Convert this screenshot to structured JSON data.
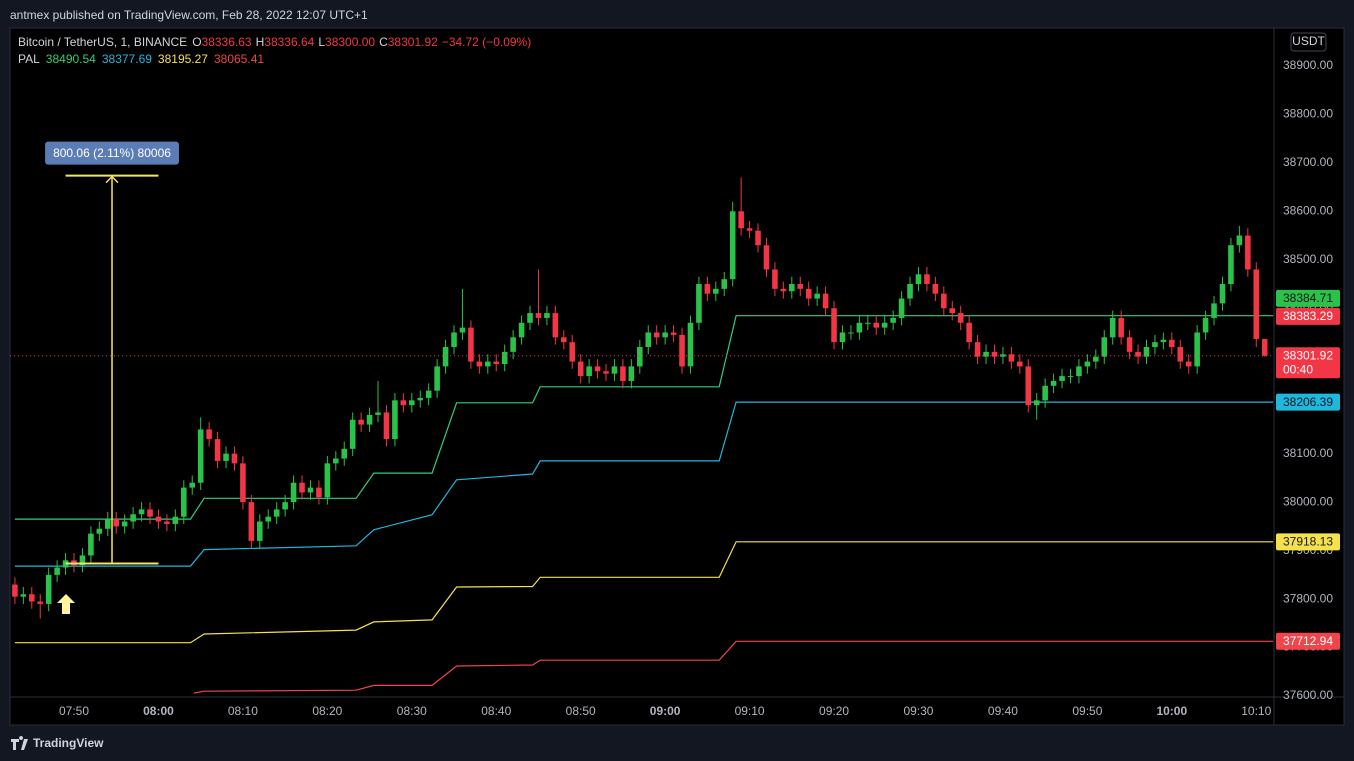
{
  "page": {
    "header": "antmex published on TradingView.com, Feb 28, 2022 12:07 UTC+1",
    "currency_button": "USDT",
    "footer_brand": "TradingView"
  },
  "chart_data": {
    "type": "candlestick",
    "symbol": "Bitcoin / TetherUS, 1, BINANCE",
    "ohlc_legend": [
      {
        "label": "O",
        "value": "38336.63"
      },
      {
        "label": "H",
        "value": "38336.64"
      },
      {
        "label": "L",
        "value": "38300.00"
      },
      {
        "label": "C",
        "value": "38301.92"
      }
    ],
    "change": "−34.72 (−0.09%)",
    "up_color": "#2bc24a",
    "down_color": "#f23645",
    "xlim": [
      -0.58,
      149.1
    ],
    "xticks": [
      {
        "value": 7,
        "label": "07:50"
      },
      {
        "value": 17,
        "label": "08:00"
      },
      {
        "value": 27,
        "label": "08:10"
      },
      {
        "value": 37,
        "label": "08:20"
      },
      {
        "value": 47,
        "label": "08:30"
      },
      {
        "value": 57,
        "label": "08:40"
      },
      {
        "value": 67,
        "label": "08:50"
      },
      {
        "value": 77,
        "label": "09:00"
      },
      {
        "value": 87,
        "label": "09:10"
      },
      {
        "value": 97,
        "label": "09:20"
      },
      {
        "value": 107,
        "label": "09:30"
      },
      {
        "value": 117,
        "label": "09:40"
      },
      {
        "value": 127,
        "label": "09:50"
      },
      {
        "value": 137,
        "label": "10:00"
      },
      {
        "value": 147,
        "label": "10:10"
      }
    ],
    "ylim": [
      37598,
      38974
    ],
    "yticks": [
      {
        "value": 37600,
        "label": "37600.00"
      },
      {
        "value": 37700,
        "label": "37700.00"
      },
      {
        "value": 37800,
        "label": "37800.00"
      },
      {
        "value": 37900,
        "label": "37900.00"
      },
      {
        "value": 38000,
        "label": "38000.00"
      },
      {
        "value": 38100,
        "label": "38100.00"
      },
      {
        "value": 38200,
        "label": "38200.00"
      },
      {
        "value": 38300,
        "label": "38300.00"
      },
      {
        "value": 38400,
        "label": "38400.00"
      },
      {
        "value": 38500,
        "label": "38500.00"
      },
      {
        "value": 38600,
        "label": "38600.00"
      },
      {
        "value": 38700,
        "label": "38700.00"
      },
      {
        "value": 38800,
        "label": "38800.00"
      },
      {
        "value": 38900,
        "label": "38900.00"
      }
    ],
    "grid": false,
    "open": [
      37830,
      37805,
      37810,
      37795,
      37790,
      37850,
      37865,
      37880,
      37870,
      37890,
      37935,
      37945,
      37965,
      37950,
      37960,
      37975,
      37985,
      37970,
      37960,
      37955,
      37970,
      38030,
      38040,
      38150,
      38130,
      38085,
      38100,
      38080,
      38000,
      37920,
      37960,
      37970,
      37985,
      38000,
      38040,
      38020,
      38030,
      38010,
      38080,
      38090,
      38110,
      38170,
      38160,
      38180,
      38185,
      38130,
      38210,
      38200,
      38210,
      38215,
      38230,
      38280,
      38320,
      38350,
      38360,
      38290,
      38280,
      38290,
      38285,
      38310,
      38340,
      38370,
      38390,
      38380,
      38390,
      38340,
      38330,
      38290,
      38260,
      38280,
      38270,
      38265,
      38280,
      38250,
      38280,
      38320,
      38350,
      38340,
      38350,
      38345,
      38280,
      38370,
      38450,
      38430,
      38440,
      38460,
      38600,
      38565,
      38560,
      38530,
      38480,
      38440,
      38435,
      38450,
      38440,
      38420,
      38430,
      38400,
      38330,
      38350,
      38350,
      38370,
      38370,
      38360,
      38370,
      38380,
      38420,
      38450,
      38470,
      38450,
      38430,
      38400,
      38390,
      38370,
      38330,
      38300,
      38310,
      38300,
      38305,
      38290,
      38280,
      38200,
      38210,
      38240,
      38250,
      38260,
      38260,
      38280,
      38290,
      38300,
      38340,
      38380,
      38340,
      38310,
      38300,
      38320,
      38330,
      38335,
      38320,
      38290,
      38280,
      38350,
      38380,
      38410,
      38450,
      38530,
      38550,
      38480,
      38336.63
    ],
    "high": [
      37845,
      37825,
      37825,
      37810,
      37865,
      37880,
      37895,
      37895,
      37905,
      37950,
      37960,
      37980,
      37980,
      37975,
      37990,
      38000,
      38000,
      37985,
      37975,
      37985,
      38045,
      38055,
      38175,
      38165,
      38145,
      38115,
      38115,
      38095,
      38015,
      37975,
      37985,
      38000,
      38015,
      38055,
      38055,
      38045,
      38045,
      38095,
      38105,
      38125,
      38185,
      38185,
      38195,
      38250,
      38200,
      38225,
      38225,
      38225,
      38230,
      38245,
      38295,
      38335,
      38365,
      38440,
      38375,
      38305,
      38305,
      38305,
      38325,
      38355,
      38385,
      38405,
      38480,
      38405,
      38405,
      38355,
      38345,
      38305,
      38295,
      38295,
      38285,
      38295,
      38295,
      38295,
      38335,
      38365,
      38365,
      38365,
      38365,
      38360,
      38385,
      38465,
      38465,
      38455,
      38475,
      38620,
      38670,
      38580,
      38575,
      38545,
      38495,
      38455,
      38465,
      38465,
      38455,
      38445,
      38445,
      38415,
      38365,
      38365,
      38385,
      38385,
      38385,
      38385,
      38395,
      38435,
      38465,
      38485,
      38485,
      38465,
      38445,
      38415,
      38405,
      38385,
      38345,
      38325,
      38325,
      38320,
      38320,
      38305,
      38295,
      38225,
      38255,
      38265,
      38275,
      38275,
      38295,
      38305,
      38315,
      38355,
      38395,
      38395,
      38355,
      38325,
      38335,
      38345,
      38350,
      38350,
      38335,
      38305,
      38365,
      38395,
      38425,
      38465,
      38545,
      38570,
      38565,
      38495,
      38336.64
    ],
    "low": [
      37790,
      37790,
      37780,
      37760,
      37775,
      37835,
      37850,
      37855,
      37855,
      37875,
      37920,
      37930,
      37935,
      37935,
      37945,
      37960,
      37955,
      37945,
      37940,
      37940,
      37955,
      38015,
      38025,
      38115,
      38070,
      38070,
      38065,
      37985,
      37905,
      37905,
      37945,
      37955,
      37970,
      37985,
      38005,
      38005,
      37995,
      37995,
      38065,
      38075,
      38095,
      38145,
      38145,
      38165,
      38115,
      38115,
      38185,
      38185,
      38195,
      38200,
      38215,
      38265,
      38305,
      38335,
      38275,
      38265,
      38265,
      38270,
      38270,
      38295,
      38325,
      38355,
      38365,
      38365,
      38325,
      38315,
      38275,
      38245,
      38245,
      38255,
      38250,
      38250,
      38235,
      38235,
      38265,
      38305,
      38325,
      38325,
      38330,
      38265,
      38265,
      38355,
      38415,
      38415,
      38425,
      38445,
      38550,
      38545,
      38515,
      38465,
      38425,
      38420,
      38420,
      38425,
      38405,
      38405,
      38385,
      38315,
      38315,
      38335,
      38335,
      38355,
      38345,
      38345,
      38355,
      38365,
      38405,
      38435,
      38435,
      38415,
      38385,
      38375,
      38355,
      38315,
      38285,
      38285,
      38285,
      38285,
      38275,
      38265,
      38185,
      38170,
      38195,
      38225,
      38235,
      38245,
      38245,
      38265,
      38275,
      38285,
      38325,
      38325,
      38295,
      38285,
      38285,
      38305,
      38315,
      38305,
      38275,
      38265,
      38265,
      38335,
      38365,
      38395,
      38435,
      38515,
      38465,
      38320,
      38300
    ],
    "close": [
      37805,
      37810,
      37795,
      37790,
      37850,
      37865,
      37880,
      37870,
      37890,
      37935,
      37945,
      37965,
      37950,
      37960,
      37975,
      37985,
      37970,
      37960,
      37955,
      37970,
      38030,
      38040,
      38150,
      38130,
      38085,
      38100,
      38080,
      38000,
      37920,
      37960,
      37970,
      37985,
      38000,
      38040,
      38020,
      38030,
      38010,
      38080,
      38090,
      38110,
      38170,
      38160,
      38180,
      38185,
      38130,
      38210,
      38200,
      38210,
      38215,
      38230,
      38280,
      38320,
      38350,
      38360,
      38290,
      38280,
      38290,
      38285,
      38310,
      38340,
      38370,
      38390,
      38380,
      38390,
      38340,
      38330,
      38290,
      38260,
      38280,
      38270,
      38265,
      38280,
      38250,
      38280,
      38320,
      38350,
      38340,
      38350,
      38345,
      38280,
      38370,
      38450,
      38430,
      38440,
      38460,
      38600,
      38565,
      38560,
      38530,
      38480,
      38440,
      38435,
      38450,
      38440,
      38420,
      38430,
      38400,
      38330,
      38350,
      38350,
      38370,
      38370,
      38360,
      38370,
      38380,
      38420,
      38450,
      38470,
      38450,
      38430,
      38400,
      38390,
      38370,
      38330,
      38300,
      38310,
      38300,
      38305,
      38290,
      38280,
      38200,
      38210,
      38240,
      38250,
      38260,
      38260,
      38280,
      38290,
      38300,
      38340,
      38380,
      38340,
      38310,
      38300,
      38320,
      38330,
      38335,
      38320,
      38290,
      38280,
      38350,
      38380,
      38410,
      38450,
      38530,
      38550,
      38480,
      38336.63,
      38301.92
    ],
    "indicator": {
      "name": "PAL",
      "legend_values": [
        38490.54,
        38377.69,
        38195.27,
        38065.41
      ],
      "series": [
        {
          "color": "#2fcf7a",
          "x": [
            0,
            20.8,
            22.4,
            40.4,
            42.5,
            49.4,
            52.3,
            61.3,
            62.2,
            83.4,
            85.4,
            149
          ],
          "values": [
            37965,
            37965,
            38008,
            38008,
            38060,
            38060,
            38205,
            38205,
            38238,
            38238,
            38384.71,
            38384.71
          ]
        },
        {
          "color": "#1fb8dc",
          "x": [
            0,
            20.8,
            22.4,
            40.4,
            42.5,
            49.4,
            52.3,
            61.3,
            62.2,
            83.4,
            85.4,
            149
          ],
          "values": [
            37868,
            37868,
            37902,
            37910,
            37943,
            37974,
            38046,
            38058,
            38085,
            38085,
            38206.39,
            38206.39
          ]
        },
        {
          "color": "#f7e14b",
          "x": [
            0,
            20.8,
            22.4,
            40.4,
            42.5,
            49.4,
            52.3,
            61.3,
            62.2,
            83.4,
            85.4,
            149
          ],
          "values": [
            37710,
            37710,
            37728,
            37736,
            37753,
            37757,
            37825,
            37826,
            37845,
            37845,
            37918.13,
            37918.13
          ]
        },
        {
          "color": "#f0454a",
          "x": [
            21.2,
            22.4,
            40.4,
            42.5,
            49.4,
            52.3,
            61.3,
            62.2,
            83.4,
            85.4,
            149
          ],
          "values": [
            37606,
            37610,
            37612,
            37622,
            37622,
            37662,
            37664,
            37674,
            37674,
            37712.94,
            37712.94
          ]
        }
      ]
    },
    "price_labels": [
      {
        "value": 38384.71,
        "color": "#2bc24a",
        "text_color": "#131722"
      },
      {
        "value": 38383.29,
        "color": "#f23645",
        "text_color": "#ffffff"
      },
      {
        "value": 38301.92,
        "countdown": "00:40",
        "color": "#f23645",
        "text_color": "#ffffff"
      },
      {
        "value": 38206.39,
        "color": "#1fb8dc",
        "text_color": "#131722"
      },
      {
        "value": 37918.13,
        "color": "#f7e14b",
        "text_color": "#131722"
      },
      {
        "value": 37712.94,
        "color": "#f0454a",
        "text_color": "#ffffff"
      }
    ],
    "measure": {
      "label": "800.06 (2.11%) 80006",
      "from": 37873.5,
      "to": 38673.56,
      "x": [
        6,
        17
      ],
      "color": "#f5e663",
      "box_color": "#5b7cb5"
    }
  }
}
